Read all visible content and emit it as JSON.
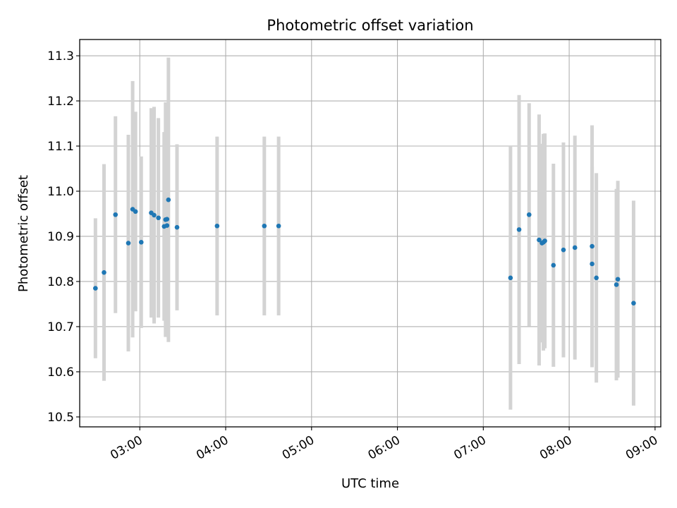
{
  "chart_data": {
    "type": "scatter",
    "title": "Photometric offset variation",
    "xlabel": "UTC time",
    "ylabel": "Photometric offset",
    "x_ticks": [
      "03:00",
      "04:00",
      "05:00",
      "06:00",
      "07:00",
      "08:00",
      "09:00"
    ],
    "y_ticks": [
      "10.5",
      "10.6",
      "10.7",
      "10.8",
      "10.9",
      "11.0",
      "11.1",
      "11.2",
      "11.3"
    ],
    "xlim": [
      "02:18",
      "09:04"
    ],
    "ylim": [
      10.478,
      11.336
    ],
    "grid": true,
    "colors": {
      "marker": "#1f77b4",
      "errorbar": "#d3d3d3",
      "grid": "#b0b0b0"
    },
    "points": [
      {
        "x": "02:29",
        "y": 10.785,
        "err": 0.155
      },
      {
        "x": "02:35",
        "y": 10.82,
        "err": 0.24
      },
      {
        "x": "02:43",
        "y": 10.948,
        "err": 0.218
      },
      {
        "x": "02:52",
        "y": 10.885,
        "err": 0.24
      },
      {
        "x": "02:55",
        "y": 10.96,
        "err": 0.284
      },
      {
        "x": "02:57",
        "y": 10.955,
        "err": 0.221
      },
      {
        "x": "03:01",
        "y": 10.887,
        "err": 0.19
      },
      {
        "x": "03:08",
        "y": 10.952,
        "err": 0.232
      },
      {
        "x": "03:10",
        "y": 10.947,
        "err": 0.24
      },
      {
        "x": "03:13",
        "y": 10.941,
        "err": 0.221
      },
      {
        "x": "03:17",
        "y": 10.922,
        "err": 0.209
      },
      {
        "x": "03:18",
        "y": 10.937,
        "err": 0.26
      },
      {
        "x": "03:19",
        "y": 10.938,
        "err": 0.205
      },
      {
        "x": "03:19",
        "y": 10.924,
        "err": 0.209
      },
      {
        "x": "03:20",
        "y": 10.981,
        "err": 0.315
      },
      {
        "x": "03:26",
        "y": 10.92,
        "err": 0.184
      },
      {
        "x": "03:54",
        "y": 10.923,
        "err": 0.198
      },
      {
        "x": "04:27",
        "y": 10.923,
        "err": 0.198
      },
      {
        "x": "04:37",
        "y": 10.923,
        "err": 0.198
      },
      {
        "x": "07:19",
        "y": 10.808,
        "err": 0.292
      },
      {
        "x": "07:25",
        "y": 10.915,
        "err": 0.298
      },
      {
        "x": "07:32",
        "y": 10.948,
        "err": 0.247
      },
      {
        "x": "07:39",
        "y": 10.892,
        "err": 0.278
      },
      {
        "x": "07:41",
        "y": 10.885,
        "err": 0.22
      },
      {
        "x": "07:42",
        "y": 10.887,
        "err": 0.24
      },
      {
        "x": "07:43",
        "y": 10.89,
        "err": 0.238
      },
      {
        "x": "07:49",
        "y": 10.836,
        "err": 0.225
      },
      {
        "x": "07:56",
        "y": 10.87,
        "err": 0.238
      },
      {
        "x": "08:04",
        "y": 10.875,
        "err": 0.248
      },
      {
        "x": "08:16",
        "y": 10.878,
        "err": 0.268
      },
      {
        "x": "08:16",
        "y": 10.839,
        "err": 0.215
      },
      {
        "x": "08:19",
        "y": 10.808,
        "err": 0.232
      },
      {
        "x": "08:33",
        "y": 10.793,
        "err": 0.212
      },
      {
        "x": "08:34",
        "y": 10.805,
        "err": 0.218
      },
      {
        "x": "08:45",
        "y": 10.752,
        "err": 0.227
      }
    ]
  }
}
